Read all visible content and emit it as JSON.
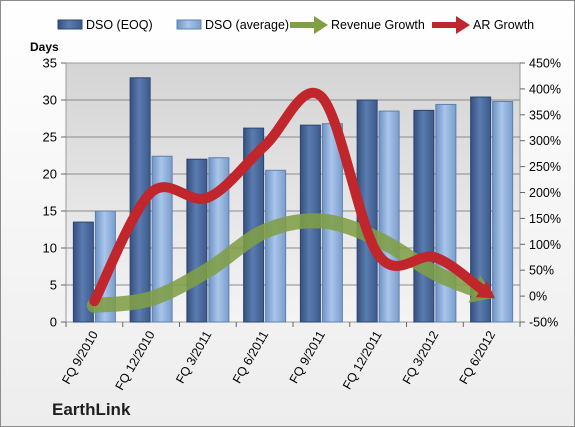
{
  "chart_data": {
    "type": "bar",
    "company": "EarthLink",
    "y_left_label": "Days",
    "categories": [
      "FQ 9/2010",
      "FQ 12/2010",
      "FQ 3/2011",
      "FQ 6/2011",
      "FQ 9/2011",
      "FQ 12/2011",
      "FQ 3/2012",
      "FQ 6/2012"
    ],
    "ylim_left": [
      0,
      35
    ],
    "yticks_left": [
      0,
      5,
      10,
      15,
      20,
      25,
      30,
      35
    ],
    "ylim_right": [
      -50,
      450
    ],
    "yticks_right": [
      "-50%",
      "0%",
      "50%",
      "100%",
      "150%",
      "200%",
      "250%",
      "300%",
      "350%",
      "400%",
      "450%"
    ],
    "yticks_right_values": [
      -50,
      0,
      50,
      100,
      150,
      200,
      250,
      300,
      350,
      400,
      450
    ],
    "grid": true,
    "legend_position": "top",
    "series": [
      {
        "name": "DSO (EOQ)",
        "kind": "bar",
        "axis": "left",
        "color": "#4f6f9f",
        "values": [
          13.5,
          33,
          22,
          26.2,
          26.6,
          30,
          28.6,
          30.4
        ]
      },
      {
        "name": "DSO (average)",
        "kind": "bar",
        "axis": "left",
        "color": "#8eb0dc",
        "values": [
          15,
          22.4,
          22.2,
          20.5,
          26.8,
          28.5,
          29.4,
          29.8
        ]
      },
      {
        "name": "Revenue Growth",
        "kind": "line",
        "axis": "right",
        "color": "#7f9e45",
        "values": [
          -18,
          -5,
          50,
          125,
          145,
          110,
          45,
          0
        ]
      },
      {
        "name": "AR Growth",
        "kind": "line",
        "axis": "right",
        "color": "#c0262b",
        "values": [
          -10,
          200,
          190,
          290,
          385,
          80,
          75,
          0
        ]
      }
    ]
  }
}
